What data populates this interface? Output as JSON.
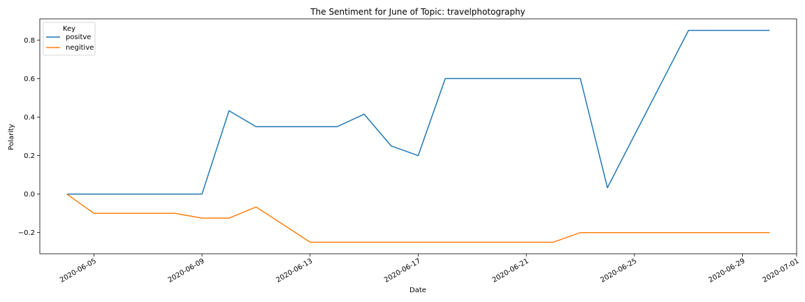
{
  "chart_data": {
    "type": "line",
    "title": "The Sentiment for June of Topic: travelphotography",
    "xlabel": "Date",
    "ylabel": "Polarity",
    "xlim": [
      "2020-06-03",
      "2020-07-01"
    ],
    "ylim": [
      -0.31,
      0.91
    ],
    "x_ticks": [
      "2020-06-05",
      "2020-06-09",
      "2020-06-13",
      "2020-06-17",
      "2020-06-21",
      "2020-06-25",
      "2020-06-29",
      "2020-07-01"
    ],
    "y_ticks": [
      -0.2,
      0.0,
      0.2,
      0.4,
      0.6,
      0.8
    ],
    "y_tick_labels": [
      "−0.2",
      "0.0",
      "0.2",
      "0.4",
      "0.6",
      "0.8"
    ],
    "grid": false,
    "legend": {
      "title": "Key",
      "position": "top-left"
    },
    "x": [
      "2020-06-04",
      "2020-06-05",
      "2020-06-06",
      "2020-06-07",
      "2020-06-08",
      "2020-06-09",
      "2020-06-10",
      "2020-06-11",
      "2020-06-12",
      "2020-06-13",
      "2020-06-14",
      "2020-06-15",
      "2020-06-16",
      "2020-06-17",
      "2020-06-18",
      "2020-06-19",
      "2020-06-20",
      "2020-06-21",
      "2020-06-22",
      "2020-06-23",
      "2020-06-24",
      "2020-06-25",
      "2020-06-26",
      "2020-06-27",
      "2020-06-28",
      "2020-06-29",
      "2020-06-30"
    ],
    "series": [
      {
        "name": "positve",
        "color": "#1f77b4",
        "values": [
          0.0,
          0.0,
          0.0,
          0.0,
          0.0,
          0.0,
          0.433,
          0.35,
          0.35,
          0.35,
          0.35,
          0.415,
          0.25,
          0.2,
          0.6,
          0.6,
          0.6,
          0.6,
          0.6,
          0.6,
          0.033,
          0.306,
          0.578,
          0.85,
          0.85,
          0.85,
          0.85
        ]
      },
      {
        "name": "negitive",
        "color": "#ff7f0e",
        "values": [
          0.0,
          -0.1,
          -0.1,
          -0.1,
          -0.1,
          -0.125,
          -0.125,
          -0.067,
          -0.158,
          -0.25,
          -0.25,
          -0.25,
          -0.25,
          -0.25,
          -0.25,
          -0.25,
          -0.25,
          -0.25,
          -0.25,
          -0.2,
          -0.2,
          -0.2,
          -0.2,
          -0.2,
          -0.2,
          -0.2,
          -0.2
        ]
      }
    ]
  }
}
